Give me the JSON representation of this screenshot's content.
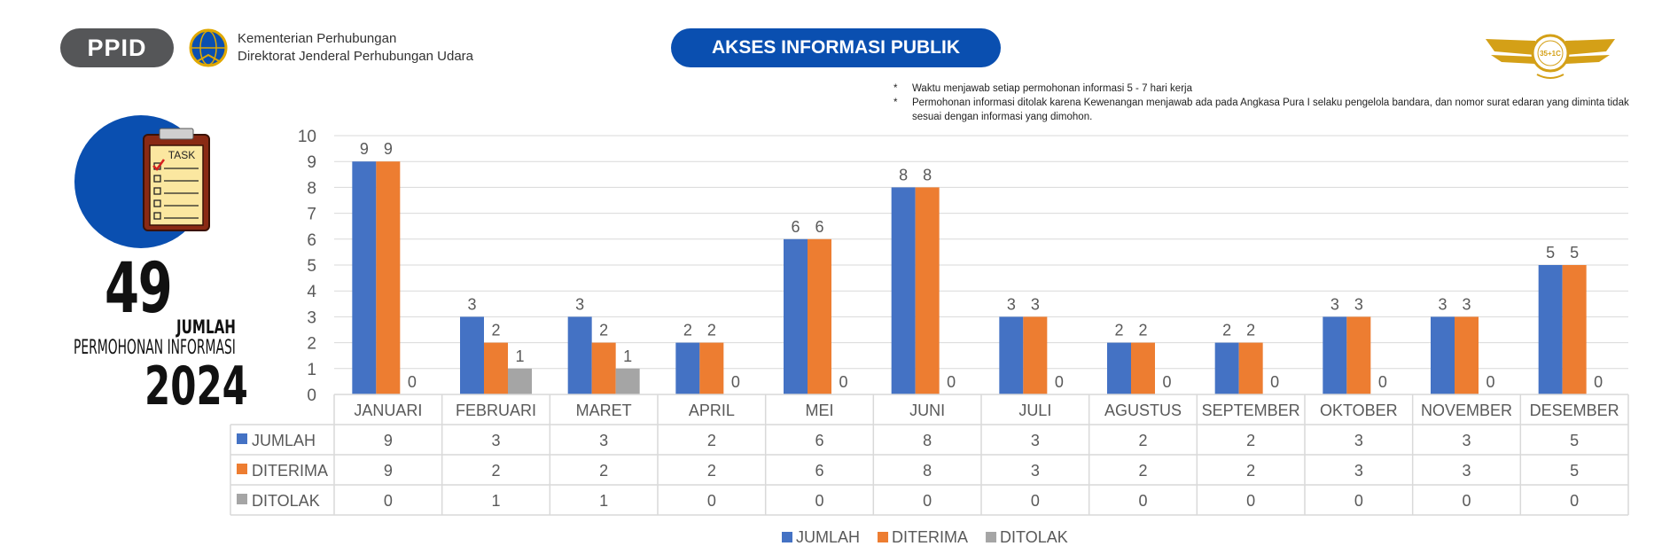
{
  "header": {
    "ppid_label": "PPID",
    "ministry_line1": "Kementerian Perhubungan",
    "ministry_line2": "Direktorat Jenderal Perhubungan Udara",
    "title": "AKSES INFORMASI PUBLIK",
    "right_logo_text": "35+1C"
  },
  "notes": [
    {
      "bullet": "*",
      "text": "Waktu menjawab setiap permohonan informasi 5 - 7 hari kerja"
    },
    {
      "bullet": "*",
      "text": "Permohonan informasi ditolak karena Kewenangan menjawab ada pada Angkasa Pura I selaku pengelola bandara, dan nomor surat edaran yang diminta tidak sesuai dengan informasi yang dimohon."
    }
  ],
  "summary": {
    "task_label": "TASK",
    "total": "49",
    "label_jumlah": "JUMLAH",
    "label_permohonan": "PERMOHONAN INFORMASI",
    "year": "2024"
  },
  "colors": {
    "jumlah": "#4472c4",
    "diterima": "#ed7d31",
    "ditolak": "#a5a5a5",
    "accent_blue": "#0a4fb0",
    "ppid_gray": "#555658"
  },
  "chart_data": {
    "type": "bar",
    "categories": [
      "JANUARI",
      "FEBRUARI",
      "MARET",
      "APRIL",
      "MEI",
      "JUNI",
      "JULI",
      "AGUSTUS",
      "SEPTEMBER",
      "OKTOBER",
      "NOVEMBER",
      "DESEMBER"
    ],
    "series": [
      {
        "name": "JUMLAH",
        "values": [
          9,
          3,
          3,
          2,
          6,
          8,
          3,
          2,
          2,
          3,
          3,
          5
        ]
      },
      {
        "name": "DITERIMA",
        "values": [
          9,
          2,
          2,
          2,
          6,
          8,
          3,
          2,
          2,
          3,
          3,
          5
        ]
      },
      {
        "name": "DITOLAK",
        "values": [
          0,
          1,
          1,
          0,
          0,
          0,
          0,
          0,
          0,
          0,
          0,
          0
        ]
      }
    ],
    "y_ticks": [
      "0",
      "1",
      "2",
      "3",
      "4",
      "5",
      "6",
      "7",
      "8",
      "9",
      "10"
    ],
    "ylim": [
      0,
      10
    ],
    "grid": true,
    "data_table": true,
    "legend_position": "bottom"
  }
}
